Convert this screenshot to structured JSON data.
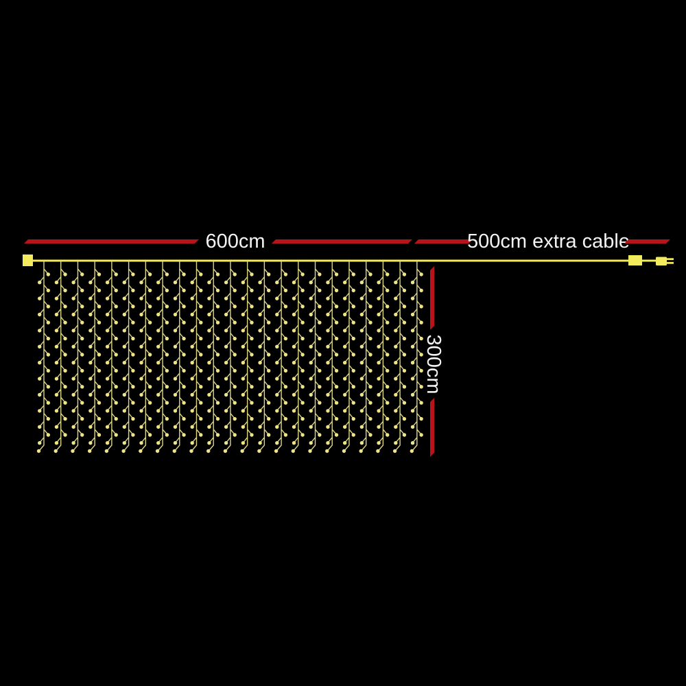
{
  "background": "#000000",
  "colors": {
    "dimension_red": "#b8121a",
    "cable_yellow": "#f3eb5e",
    "strand_yellow": "#dcd584",
    "bulb_yellow": "#eee487",
    "label_white": "#f4f4f4"
  },
  "labels": {
    "width_main": "600cm",
    "width_extra": "500cm extra cable",
    "drop_height": "300cm"
  },
  "curtain": {
    "strand_count": 23,
    "bulbs_per_strand": 22
  }
}
